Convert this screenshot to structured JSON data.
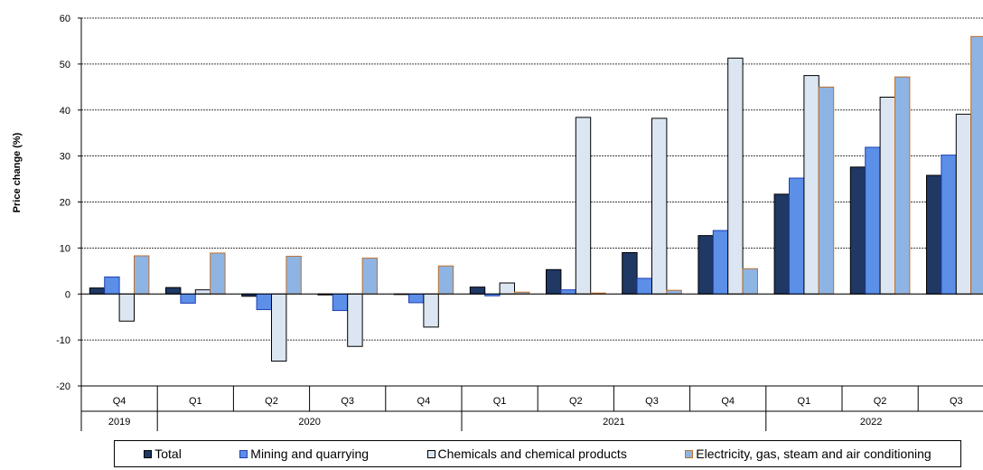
{
  "chart_data": {
    "type": "bar",
    "title": "",
    "ylabel": "Price change (%)",
    "ylim": [
      -20,
      60
    ],
    "yticks": [
      -20,
      -10,
      0,
      10,
      20,
      30,
      40,
      50,
      60
    ],
    "categories": [
      "Q4",
      "Q1",
      "Q2",
      "Q3",
      "Q4",
      "Q1",
      "Q2",
      "Q3",
      "Q4",
      "Q1",
      "Q2",
      "Q3"
    ],
    "year_groups": [
      {
        "label": "2019",
        "start": 0,
        "end": 0
      },
      {
        "label": "2020",
        "start": 1,
        "end": 4
      },
      {
        "label": "2021",
        "start": 5,
        "end": 8
      },
      {
        "label": "2022",
        "start": 9,
        "end": 11
      }
    ],
    "grid": true,
    "legend_position": "bottom",
    "series": [
      {
        "name": "Total",
        "color": "#1f3864",
        "stroke": "#000000",
        "values": [
          1.3,
          1.4,
          -0.5,
          -0.2,
          0.0,
          1.5,
          5.3,
          9.0,
          12.7,
          21.7,
          27.6,
          25.8
        ]
      },
      {
        "name": "Mining and quarrying",
        "color": "#5b8fe8",
        "stroke": "#1f3fb4",
        "values": [
          3.7,
          -2.0,
          -3.4,
          -3.6,
          -1.9,
          -0.4,
          0.9,
          3.4,
          13.8,
          25.2,
          31.9,
          30.2
        ]
      },
      {
        "name": "Chemicals and chemical products",
        "color": "#dce6f2",
        "stroke": "#000000",
        "values": [
          -5.9,
          0.9,
          -14.6,
          -11.4,
          -7.2,
          2.4,
          38.4,
          38.2,
          51.3,
          47.5,
          42.8,
          39.1
        ]
      },
      {
        "name": "Electricity, gas, steam and air conditioning",
        "color": "#8eb4e3",
        "stroke": "#c0702a",
        "values": [
          8.3,
          8.9,
          8.2,
          7.8,
          6.1,
          0.4,
          0.2,
          0.8,
          5.5,
          45.0,
          47.2,
          56.0
        ]
      }
    ]
  }
}
